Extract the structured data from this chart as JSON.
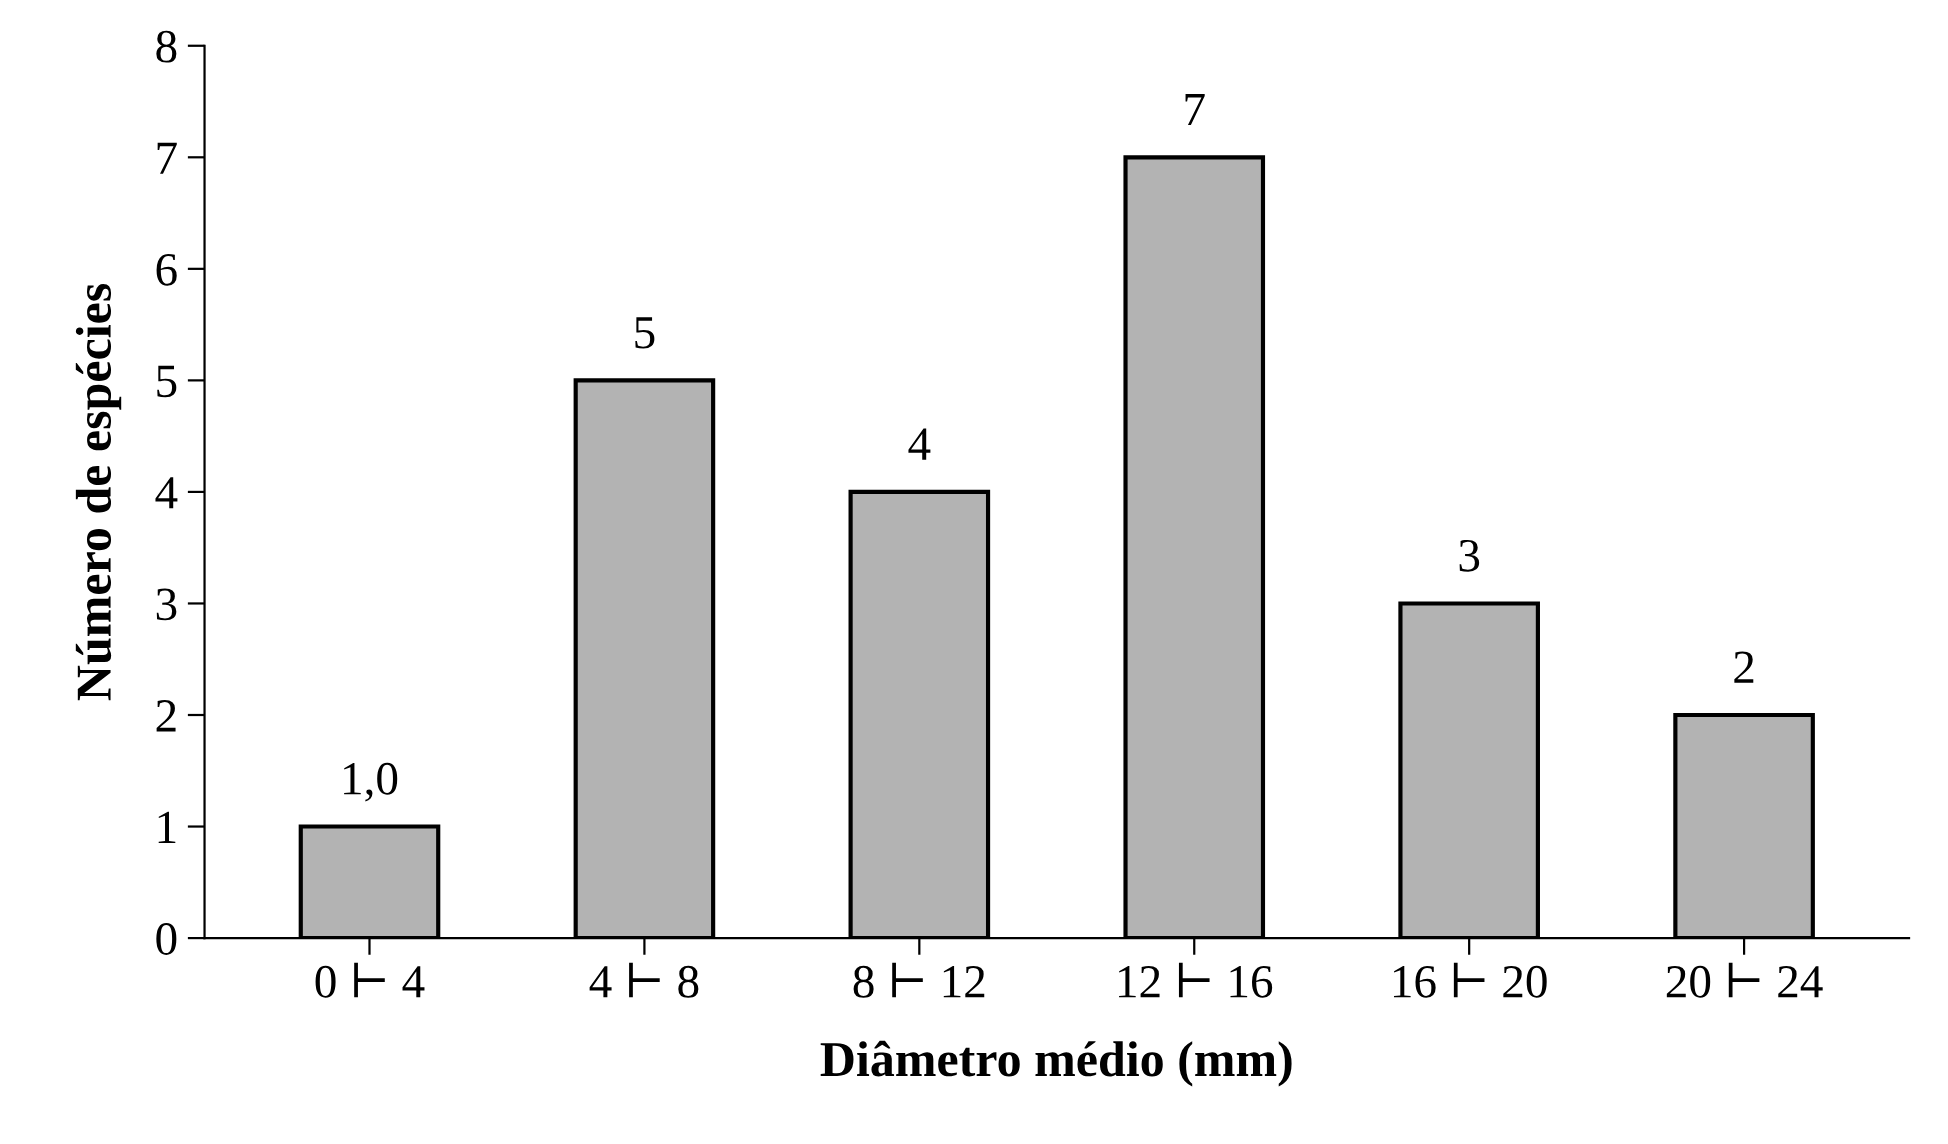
{
  "chart_data": {
    "type": "bar",
    "xlabel": "Diâmetro médio (mm)",
    "ylabel": "Número de espécies",
    "categories": [
      "0 ⊢ 4",
      "4 ⊢ 8",
      "8 ⊢ 12",
      "12 ⊢ 16",
      "16 ⊢ 20",
      "20 ⊢ 24"
    ],
    "values": [
      1,
      5,
      4,
      7,
      3,
      2
    ],
    "value_labels": [
      "1,0",
      "5",
      "4",
      "7",
      "3",
      "2"
    ],
    "color": "#b3b3b3",
    "ylim": [
      0,
      8
    ],
    "yticks": [
      0,
      1,
      2,
      3,
      4,
      5,
      6,
      7,
      8
    ],
    "grid": false,
    "legend": false
  }
}
